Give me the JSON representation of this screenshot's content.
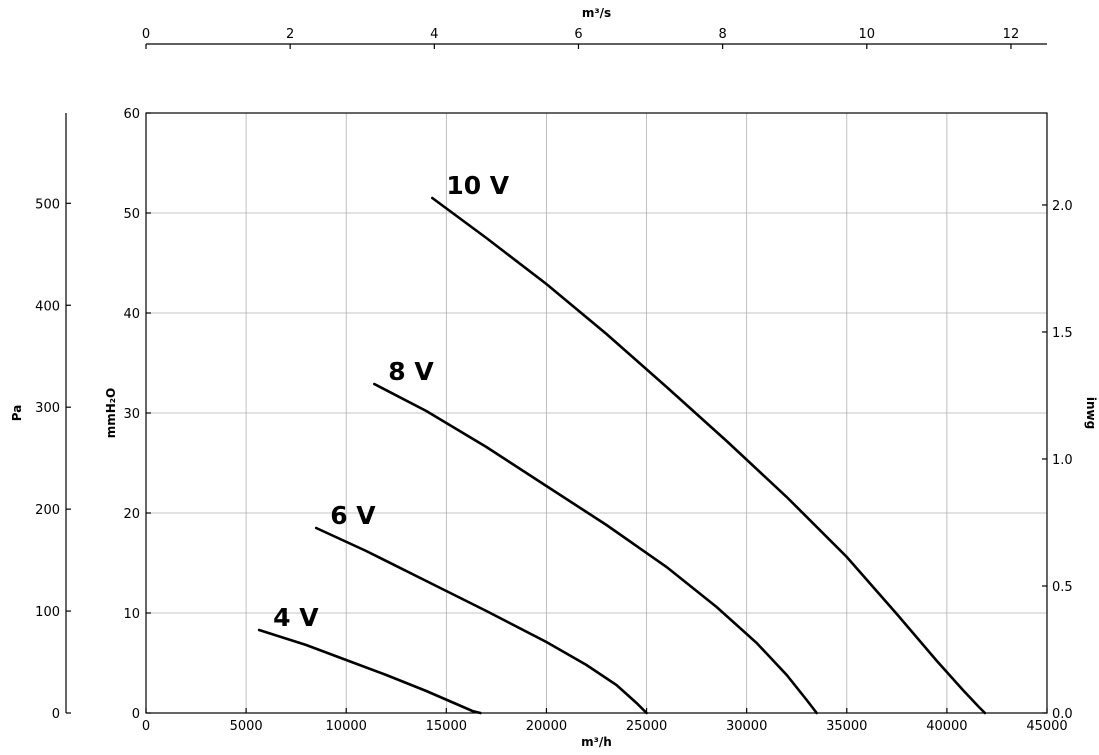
{
  "chart_data": {
    "type": "line",
    "x_axis_bottom": {
      "label": "m³/h",
      "range": [
        0,
        45000
      ],
      "ticks": [
        "0",
        "5000",
        "10000",
        "15000",
        "20000",
        "25000",
        "30000",
        "35000",
        "40000",
        "45000"
      ]
    },
    "x_axis_top": {
      "label": "m³/s",
      "range": [
        0,
        12.5
      ],
      "ticks": [
        "0",
        "2",
        "4",
        "6",
        "8",
        "10",
        "12"
      ]
    },
    "y_axis_left_inner": {
      "label": "mmH₂O",
      "range": [
        0,
        60
      ],
      "ticks": [
        "0",
        "10",
        "20",
        "30",
        "40",
        "50",
        "60"
      ]
    },
    "y_axis_left_outer": {
      "label": "Pa",
      "range": [
        0,
        588.6
      ],
      "ticks": [
        "0",
        "100",
        "200",
        "300",
        "400",
        "500"
      ]
    },
    "y_axis_right": {
      "label": "inwg",
      "range": [
        0,
        2.362
      ],
      "ticks": [
        "0.0",
        "0.5",
        "1.0",
        "1.5",
        "2.0"
      ]
    },
    "grid": true,
    "series": [
      {
        "name": "4 V",
        "x": [
          5650,
          8000,
          10000,
          12000,
          14000,
          15500,
          16300,
          16700
        ],
        "y": [
          8.3,
          6.8,
          5.3,
          3.8,
          2.2,
          0.9,
          0.2,
          0
        ]
      },
      {
        "name": "6 V",
        "x": [
          8500,
          11000,
          14000,
          17000,
          20000,
          22000,
          23500,
          24500,
          25000
        ],
        "y": [
          18.5,
          16.2,
          13.2,
          10.2,
          7.1,
          4.8,
          2.8,
          1.0,
          0
        ]
      },
      {
        "name": "8 V",
        "x": [
          11400,
          14000,
          17000,
          20000,
          23000,
          26000,
          28500,
          30500,
          32000,
          33000,
          33500
        ],
        "y": [
          32.9,
          30.2,
          26.6,
          22.7,
          18.8,
          14.6,
          10.6,
          7.0,
          3.8,
          1.3,
          0
        ]
      },
      {
        "name": "10 V",
        "x": [
          14300,
          17000,
          20000,
          23000,
          26000,
          29000,
          32000,
          35000,
          37500,
          39500,
          40800,
          41600,
          41900
        ],
        "y": [
          51.5,
          47.5,
          42.9,
          37.9,
          32.6,
          27.2,
          21.6,
          15.6,
          9.9,
          5.2,
          2.3,
          0.6,
          0
        ]
      }
    ]
  }
}
